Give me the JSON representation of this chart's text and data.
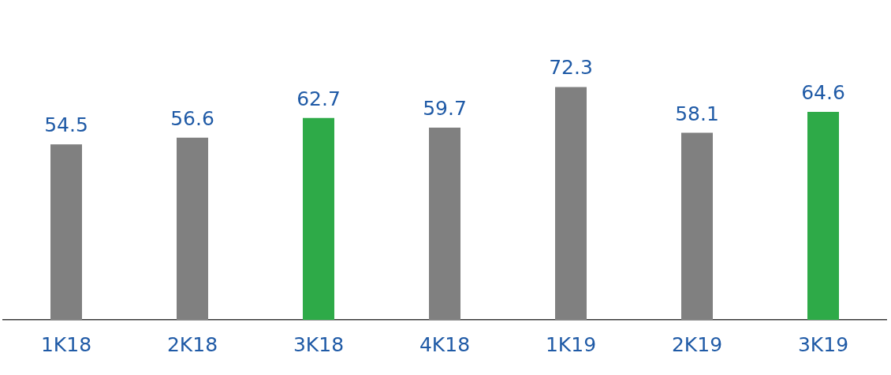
{
  "chart_data": {
    "type": "bar",
    "categories": [
      "1K18",
      "2K18",
      "3K18",
      "4K18",
      "1K19",
      "2K19",
      "3K19"
    ],
    "values": [
      54.5,
      56.6,
      62.7,
      59.7,
      72.3,
      58.1,
      64.6
    ],
    "colors": [
      "#808080",
      "#808080",
      "#2eaa48",
      "#808080",
      "#808080",
      "#808080",
      "#2eaa48"
    ],
    "data_labels": true,
    "grid": false,
    "legend": false
  }
}
